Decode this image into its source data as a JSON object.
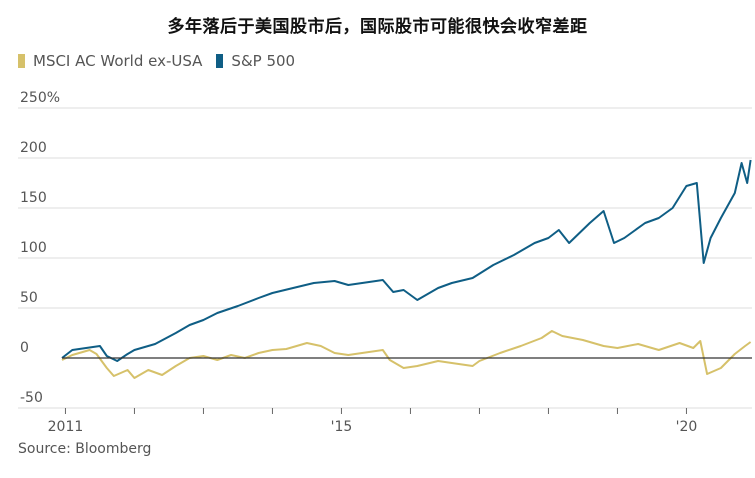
{
  "title": "多年落后于美国股市后，国际股市可能很快会收窄差距",
  "source": "Source: Bloomberg",
  "colors": {
    "msci": "#d6c16a",
    "sp500": "#0f5e85",
    "grid": "#dddddd",
    "zero": "#333333",
    "text": "#555555"
  },
  "chart_data": {
    "type": "line",
    "title": "多年落后于美国股市后，国际股市可能很快会收窄差距",
    "ylabel": "",
    "xlabel": "",
    "ylim": [
      -50,
      250
    ],
    "xlim": [
      2010.95,
      2020.95
    ],
    "y_ticks": [
      {
        "value": 250,
        "label": "250%"
      },
      {
        "value": 200,
        "label": "200"
      },
      {
        "value": 150,
        "label": "150"
      },
      {
        "value": 100,
        "label": "100"
      },
      {
        "value": 50,
        "label": "50"
      },
      {
        "value": 0,
        "label": "0"
      },
      {
        "value": -50,
        "label": "-50"
      }
    ],
    "x_ticks": [
      {
        "value": 2011,
        "label": "2011"
      },
      {
        "value": 2012,
        "label": ""
      },
      {
        "value": 2013,
        "label": ""
      },
      {
        "value": 2014,
        "label": ""
      },
      {
        "value": 2015,
        "label": "'15"
      },
      {
        "value": 2016,
        "label": ""
      },
      {
        "value": 2017,
        "label": ""
      },
      {
        "value": 2018,
        "label": ""
      },
      {
        "value": 2019,
        "label": ""
      },
      {
        "value": 2020,
        "label": "'20"
      }
    ],
    "grid": true,
    "legend_position": "top-left",
    "series": [
      {
        "name": "MSCI AC World ex-USA",
        "color": "#d6c16a",
        "x": [
          2010.95,
          2011.1,
          2011.25,
          2011.35,
          2011.45,
          2011.6,
          2011.7,
          2011.9,
          2012.0,
          2012.2,
          2012.4,
          2012.6,
          2012.8,
          2013.0,
          2013.2,
          2013.4,
          2013.6,
          2013.8,
          2014.0,
          2014.2,
          2014.5,
          2014.7,
          2014.9,
          2015.1,
          2015.3,
          2015.6,
          2015.7,
          2015.9,
          2016.1,
          2016.4,
          2016.6,
          2016.9,
          2017.0,
          2017.3,
          2017.6,
          2017.9,
          2018.05,
          2018.2,
          2018.5,
          2018.8,
          2019.0,
          2019.3,
          2019.6,
          2019.9,
          2020.1,
          2020.2,
          2020.3,
          2020.5,
          2020.7,
          2020.85,
          2020.93
        ],
        "values": [
          -2,
          3,
          6,
          8,
          4,
          -10,
          -18,
          -12,
          -20,
          -12,
          -17,
          -8,
          0,
          2,
          -2,
          3,
          0,
          5,
          8,
          9,
          15,
          12,
          5,
          3,
          5,
          8,
          -2,
          -10,
          -8,
          -3,
          -5,
          -8,
          -3,
          5,
          12,
          20,
          27,
          22,
          18,
          12,
          10,
          14,
          8,
          15,
          10,
          17,
          -16,
          -10,
          4,
          12,
          16
        ]
      },
      {
        "name": "S&P 500",
        "color": "#0f5e85",
        "x": [
          2010.95,
          2011.1,
          2011.3,
          2011.5,
          2011.6,
          2011.75,
          2011.9,
          2012.0,
          2012.3,
          2012.6,
          2012.8,
          2013.0,
          2013.2,
          2013.5,
          2013.8,
          2014.0,
          2014.3,
          2014.6,
          2014.9,
          2015.1,
          2015.4,
          2015.6,
          2015.75,
          2015.9,
          2016.1,
          2016.4,
          2016.6,
          2016.9,
          2017.2,
          2017.5,
          2017.8,
          2018.0,
          2018.15,
          2018.3,
          2018.6,
          2018.8,
          2018.95,
          2019.1,
          2019.4,
          2019.6,
          2019.8,
          2020.0,
          2020.15,
          2020.25,
          2020.35,
          2020.5,
          2020.7,
          2020.8,
          2020.88,
          2020.93
        ],
        "values": [
          0,
          8,
          10,
          12,
          2,
          -3,
          4,
          8,
          14,
          25,
          33,
          38,
          45,
          52,
          60,
          65,
          70,
          75,
          77,
          73,
          76,
          78,
          66,
          68,
          58,
          70,
          75,
          80,
          93,
          103,
          115,
          120,
          128,
          115,
          135,
          147,
          115,
          120,
          135,
          140,
          150,
          172,
          175,
          95,
          120,
          140,
          165,
          195,
          175,
          198
        ]
      }
    ]
  }
}
